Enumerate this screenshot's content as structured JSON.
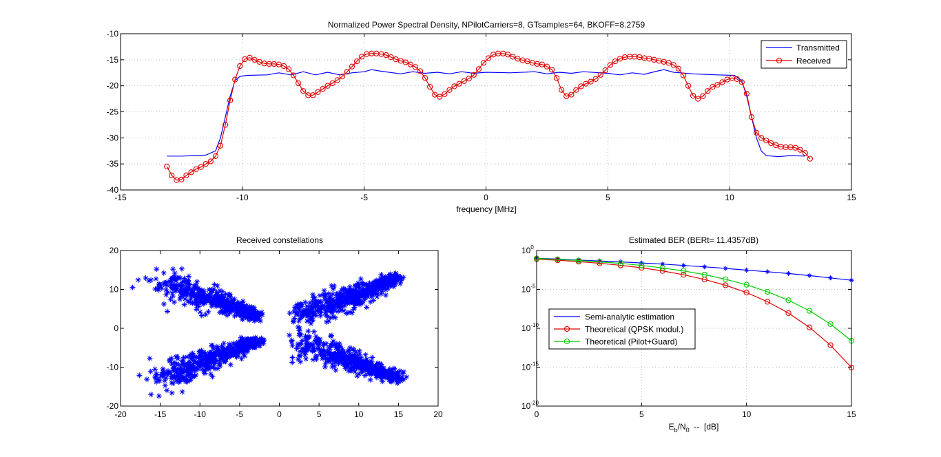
{
  "colors": {
    "blue": "#0000ff",
    "red": "#e00000",
    "green": "#00cc00",
    "black": "#000000",
    "grid": "#bdbdbd"
  },
  "chart_data": [
    {
      "id": "psd",
      "type": "line",
      "title": "Normalized Power Spectral Density, NPilotCarriers=8, GTsamples=64, BKOFF=8.2759",
      "xlabel": "frequency [MHz]",
      "ylabel": "",
      "xlim": [
        -15,
        15
      ],
      "ylim": [
        -40,
        -10
      ],
      "xticks": [
        -15,
        -10,
        -5,
        0,
        5,
        10,
        15
      ],
      "yticks": [
        -40,
        -35,
        -30,
        -25,
        -20,
        -15,
        -10
      ],
      "grid": true,
      "legend_position": "top-right",
      "legend": [
        "Transmitted",
        "Received"
      ],
      "series": [
        {
          "name": "Transmitted",
          "color": "blue",
          "marker": "none",
          "points": [
            [
              -13.1,
              -33.5
            ],
            [
              -12.5,
              -33.5
            ],
            [
              -12,
              -33.4
            ],
            [
              -11.5,
              -33.3
            ],
            [
              -11.1,
              -32.5
            ],
            [
              -10.9,
              -30
            ],
            [
              -10.7,
              -26
            ],
            [
              -10.5,
              -22
            ],
            [
              -10.3,
              -19
            ],
            [
              -10.1,
              -18.2
            ],
            [
              -9.8,
              -18
            ],
            [
              -9,
              -17.9
            ],
            [
              -8.5,
              -17.5
            ],
            [
              -8,
              -17.9
            ],
            [
              -7.5,
              -17.3
            ],
            [
              -7,
              -17.9
            ],
            [
              -6.5,
              -17.4
            ],
            [
              -6,
              -17.9
            ],
            [
              -5.5,
              -17.5
            ],
            [
              -5,
              -17.3
            ],
            [
              -4.7,
              -16.9
            ],
            [
              -4.3,
              -17.2
            ],
            [
              -3.5,
              -17.7
            ],
            [
              -3,
              -17.3
            ],
            [
              -2.5,
              -17.6
            ],
            [
              -2,
              -17.4
            ],
            [
              -1.5,
              -17.7
            ],
            [
              -1,
              -17.3
            ],
            [
              -0.5,
              -17.6
            ],
            [
              0,
              -17.4
            ],
            [
              1,
              -17.5
            ],
            [
              2,
              -17.3
            ],
            [
              2.5,
              -17.7
            ],
            [
              3,
              -17.4
            ],
            [
              3.5,
              -17.6
            ],
            [
              4,
              -17.3
            ],
            [
              5,
              -17.6
            ],
            [
              5.5,
              -17.9
            ],
            [
              6,
              -17.5
            ],
            [
              6.5,
              -17.8
            ],
            [
              7,
              -17.2
            ],
            [
              7.3,
              -16.9
            ],
            [
              7.7,
              -17.4
            ],
            [
              8.5,
              -17.7
            ],
            [
              9.5,
              -17.9
            ],
            [
              10.2,
              -18
            ],
            [
              10.5,
              -19
            ],
            [
              10.7,
              -22
            ],
            [
              10.9,
              -26
            ],
            [
              11.1,
              -30
            ],
            [
              11.3,
              -32.5
            ],
            [
              11.5,
              -33.4
            ],
            [
              12,
              -33.6
            ],
            [
              12.5,
              -33.4
            ],
            [
              13.1,
              -33.5
            ]
          ]
        },
        {
          "name": "Received",
          "color": "red",
          "marker": "circle",
          "points": [
            [
              -13.1,
              -35.5
            ],
            [
              -12.9,
              -37.2
            ],
            [
              -12.7,
              -38.1
            ],
            [
              -12.5,
              -38
            ],
            [
              -12.3,
              -37.2
            ],
            [
              -12.1,
              -36.6
            ],
            [
              -11.9,
              -36
            ],
            [
              -11.7,
              -35.6
            ],
            [
              -11.5,
              -35
            ],
            [
              -11.3,
              -34.5
            ],
            [
              -11.1,
              -33.5
            ],
            [
              -10.9,
              -31.5
            ],
            [
              -10.7,
              -27.5
            ],
            [
              -10.5,
              -22.8
            ],
            [
              -10.3,
              -18.8
            ],
            [
              -10.1,
              -16.2
            ],
            [
              -9.9,
              -14.9
            ],
            [
              -9.7,
              -14.6
            ],
            [
              -9.5,
              -15
            ],
            [
              -9.3,
              -15.4
            ],
            [
              -9.1,
              -15.7
            ],
            [
              -8.9,
              -15.8
            ],
            [
              -8.7,
              -15.8
            ],
            [
              -8.5,
              -15.9
            ],
            [
              -8.3,
              -16.2
            ],
            [
              -8.1,
              -16.8
            ],
            [
              -7.9,
              -18
            ],
            [
              -7.7,
              -19.5
            ],
            [
              -7.5,
              -21
            ],
            [
              -7.3,
              -21.8
            ],
            [
              -7.1,
              -21.8
            ],
            [
              -6.9,
              -21.2
            ],
            [
              -6.7,
              -20.6
            ],
            [
              -6.5,
              -20
            ],
            [
              -6.3,
              -19.5
            ],
            [
              -6.1,
              -18.9
            ],
            [
              -5.9,
              -18.2
            ],
            [
              -5.7,
              -17.3
            ],
            [
              -5.5,
              -16.3
            ],
            [
              -5.3,
              -15.3
            ],
            [
              -5.1,
              -14.4
            ],
            [
              -4.9,
              -13.9
            ],
            [
              -4.7,
              -13.8
            ],
            [
              -4.5,
              -13.8
            ],
            [
              -4.3,
              -13.9
            ],
            [
              -4.1,
              -14.1
            ],
            [
              -3.9,
              -14.5
            ],
            [
              -3.7,
              -14.9
            ],
            [
              -3.5,
              -15.2
            ],
            [
              -3.3,
              -15.5
            ],
            [
              -3.1,
              -15.9
            ],
            [
              -2.9,
              -16.4
            ],
            [
              -2.7,
              -17.2
            ],
            [
              -2.5,
              -18.5
            ],
            [
              -2.3,
              -20.2
            ],
            [
              -2.1,
              -21.7
            ],
            [
              -1.9,
              -22.1
            ],
            [
              -1.7,
              -21.6
            ],
            [
              -1.5,
              -20.8
            ],
            [
              -1.3,
              -20.1
            ],
            [
              -1.1,
              -19.6
            ],
            [
              -0.9,
              -19.1
            ],
            [
              -0.7,
              -18.6
            ],
            [
              -0.5,
              -17.9
            ],
            [
              -0.3,
              -16.8
            ],
            [
              -0.1,
              -15.6
            ],
            [
              0.1,
              -14.7
            ],
            [
              0.3,
              -14
            ],
            [
              0.5,
              -13.8
            ],
            [
              0.7,
              -13.8
            ],
            [
              0.9,
              -14
            ],
            [
              1.1,
              -14.4
            ],
            [
              1.3,
              -14.8
            ],
            [
              1.5,
              -15.1
            ],
            [
              1.7,
              -15.3
            ],
            [
              1.9,
              -15.6
            ],
            [
              2.1,
              -15.8
            ],
            [
              2.3,
              -15.9
            ],
            [
              2.5,
              -16.3
            ],
            [
              2.7,
              -16.9
            ],
            [
              2.9,
              -18.5
            ],
            [
              3.1,
              -20.8
            ],
            [
              3.3,
              -22
            ],
            [
              3.5,
              -21.7
            ],
            [
              3.7,
              -20.8
            ],
            [
              3.9,
              -20.1
            ],
            [
              4.1,
              -19.6
            ],
            [
              4.3,
              -19.2
            ],
            [
              4.5,
              -18.7
            ],
            [
              4.7,
              -17.9
            ],
            [
              4.9,
              -17
            ],
            [
              5.1,
              -16
            ],
            [
              5.3,
              -15.3
            ],
            [
              5.5,
              -14.8
            ],
            [
              5.7,
              -14.5
            ],
            [
              5.9,
              -14.4
            ],
            [
              6.1,
              -14.4
            ],
            [
              6.3,
              -14.5
            ],
            [
              6.5,
              -14.7
            ],
            [
              6.7,
              -14.8
            ],
            [
              6.9,
              -15
            ],
            [
              7.1,
              -15.2
            ],
            [
              7.3,
              -15.4
            ],
            [
              7.5,
              -15.6
            ],
            [
              7.7,
              -16
            ],
            [
              7.9,
              -16.7
            ],
            [
              8.1,
              -18
            ],
            [
              8.3,
              -20
            ],
            [
              8.5,
              -21.9
            ],
            [
              8.7,
              -22.5
            ],
            [
              8.9,
              -22
            ],
            [
              9.1,
              -21
            ],
            [
              9.3,
              -20.2
            ],
            [
              9.5,
              -19.8
            ],
            [
              9.7,
              -19.3
            ],
            [
              9.9,
              -18.8
            ],
            [
              10.1,
              -18.5
            ],
            [
              10.3,
              -18.7
            ],
            [
              10.5,
              -19.3
            ],
            [
              10.7,
              -21.5
            ],
            [
              10.9,
              -26
            ],
            [
              11.1,
              -29
            ],
            [
              11.3,
              -30
            ],
            [
              11.5,
              -30.5
            ],
            [
              11.7,
              -31
            ],
            [
              11.9,
              -31.4
            ],
            [
              12.1,
              -31.7
            ],
            [
              12.3,
              -31.8
            ],
            [
              12.5,
              -31.8
            ],
            [
              12.7,
              -31.9
            ],
            [
              12.9,
              -32.3
            ],
            [
              13.1,
              -32.9
            ],
            [
              13.3,
              -34
            ]
          ]
        }
      ]
    },
    {
      "id": "constellation",
      "type": "scatter",
      "title": "Received constellations",
      "xlabel": "",
      "ylabel": "",
      "xlim": [
        -20,
        20
      ],
      "ylim": [
        -20,
        20
      ],
      "xticks": [
        -20,
        -15,
        -10,
        -5,
        0,
        5,
        10,
        15,
        20
      ],
      "yticks": [
        -20,
        -10,
        0,
        10,
        20
      ],
      "grid": false,
      "marker": "asterisk",
      "color": "blue",
      "clusters": [
        {
          "quadrant": "upper-left",
          "from": [
            -15,
            12
          ],
          "to": [
            -2.5,
            3
          ]
        },
        {
          "quadrant": "upper-right",
          "from": [
            2.5,
            3
          ],
          "to": [
            15,
            13
          ]
        },
        {
          "quadrant": "lower-left",
          "from": [
            -15,
            -13
          ],
          "to": [
            -2.5,
            -3
          ]
        },
        {
          "quadrant": "lower-right",
          "from": [
            2.5,
            -3
          ],
          "to": [
            15,
            -13
          ]
        }
      ]
    },
    {
      "id": "ber",
      "type": "line",
      "title": "Estimated BER (BERt= 11.4357dB)",
      "xlabel_parts": [
        "E",
        "b",
        "/N",
        "0",
        "  --  [dB]"
      ],
      "ylabel": "",
      "yscale": "log",
      "xlim": [
        0,
        15
      ],
      "ylim": [
        1e-20,
        1
      ],
      "xticks": [
        0,
        5,
        10,
        15
      ],
      "yticks": [
        {
          "base": "10",
          "exp": "0",
          "value": 1
        },
        {
          "base": "10",
          "exp": "-5",
          "value": 1e-05
        },
        {
          "base": "10",
          "exp": "-10",
          "value": 1e-10
        },
        {
          "base": "10",
          "exp": "-15",
          "value": 1e-15
        },
        {
          "base": "10",
          "exp": "-20",
          "value": 1e-20
        }
      ],
      "grid": true,
      "legend_position": "lower-left",
      "legend": [
        "Semi-analytic estimation",
        "Theoretical (QPSK modul.)",
        "Theoretical (Pilot+Guard)"
      ],
      "series": [
        {
          "name": "Semi-analytic estimation",
          "color": "blue",
          "marker": "asterisk",
          "x": [
            0,
            1,
            2,
            3,
            4,
            5,
            6,
            7,
            8,
            9,
            10,
            11,
            12,
            13,
            14,
            15
          ],
          "y": [
            0.1,
            0.08,
            0.06,
            0.045,
            0.035,
            0.025,
            0.018,
            0.012,
            0.008,
            0.005,
            0.003,
            0.0019,
            0.0011,
            0.0006,
            0.0003,
            0.00015
          ]
        },
        {
          "name": "Theoretical (QPSK modul.)",
          "color": "red",
          "marker": "circle",
          "x": [
            0,
            1,
            2,
            3,
            4,
            5,
            6,
            7,
            8,
            9,
            10,
            11,
            12,
            13,
            14,
            15
          ],
          "y": [
            0.0786,
            0.0563,
            0.0375,
            0.0229,
            0.0125,
            0.006,
            0.0024,
            0.00077,
            0.00019,
            3.4e-05,
            3.9e-06,
            2.6e-07,
            9e-09,
            1.3e-10,
            6.8e-13,
            9.1e-16
          ]
        },
        {
          "name": "Theoretical (Pilot+Guard)",
          "color": "green",
          "marker": "circle",
          "x": [
            0,
            1,
            2,
            3,
            4,
            5,
            6,
            7,
            8,
            9,
            10,
            11,
            12,
            13,
            14,
            15
          ],
          "y": [
            0.095,
            0.072,
            0.052,
            0.035,
            0.022,
            0.012,
            0.0058,
            0.0024,
            0.0008,
            0.0002,
            4e-05,
            5e-06,
            4e-07,
            1.8e-08,
            3.5e-10,
            2.5e-12
          ]
        }
      ]
    }
  ]
}
